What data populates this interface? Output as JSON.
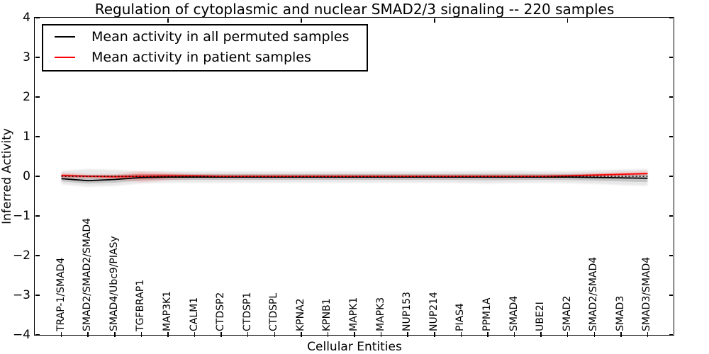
{
  "figure": {
    "background_color": "#ffffff",
    "frame_color": "#000000"
  },
  "chart_data": {
    "type": "line",
    "title": "Regulation of cytoplasmic and nuclear SMAD2/3 signaling -- 220 samples",
    "xlabel": "Cellular Entities",
    "ylabel": "Inferred Activity",
    "ylim": [
      -4,
      4
    ],
    "xlim_categories": [
      0,
      24
    ],
    "grid": false,
    "yticks": [
      -4,
      -3,
      -2,
      -1,
      0,
      1,
      2,
      3,
      4
    ],
    "ytick_labels": [
      "−4",
      "−3",
      "−2",
      "−1",
      "0",
      "1",
      "2",
      "3",
      "4"
    ],
    "top_axis_ticks": [
      5,
      10,
      15,
      20
    ],
    "categories": [
      "TRAP-1/SMAD4",
      "SMAD2/SMAD2/SMAD4",
      "SMAD4/Ubc9/PIASy",
      "TGFBRAP1",
      "MAP3K1",
      "CALM1",
      "CTDSP2",
      "CTDSP1",
      "CTDSPL",
      "KPNA2",
      "KPNB1",
      "MAPK1",
      "MAPK3",
      "NUP153",
      "NUP214",
      "PIAS4",
      "PPM1A",
      "SMAD4",
      "UBE2I",
      "SMAD2",
      "SMAD2/SMAD4",
      "SMAD3",
      "SMAD3/SMAD4"
    ],
    "series": [
      {
        "name": "Mean activity in all permuted samples",
        "color": "#000000",
        "line_style": "solid",
        "values": [
          -0.06,
          -0.11,
          -0.08,
          -0.03,
          -0.02,
          -0.02,
          -0.02,
          -0.02,
          -0.02,
          -0.02,
          -0.02,
          -0.02,
          -0.02,
          -0.02,
          -0.02,
          -0.02,
          -0.02,
          -0.02,
          -0.02,
          -0.02,
          -0.03,
          -0.04,
          -0.05
        ]
      },
      {
        "name": "Mean activity in patient samples",
        "color": "#ff0000",
        "line_style": "solid",
        "values": [
          0.02,
          0.0,
          -0.01,
          0.0,
          0.01,
          0.01,
          0.0,
          0.0,
          0.0,
          0.0,
          0.0,
          0.0,
          0.0,
          0.0,
          0.0,
          0.0,
          0.0,
          0.0,
          0.0,
          0.01,
          0.03,
          0.05,
          0.07
        ]
      }
    ],
    "bands": [
      {
        "name": "permuted-samples-spread-band",
        "color": "#000000",
        "opacity": 0.09,
        "series_index": 0,
        "upper": [
          0.14,
          0.18,
          0.16,
          0.13,
          0.13,
          0.13,
          0.13,
          0.13,
          0.13,
          0.13,
          0.13,
          0.13,
          0.13,
          0.13,
          0.13,
          0.13,
          0.14,
          0.14,
          0.13,
          0.13,
          0.15,
          0.17,
          0.18
        ],
        "lower": [
          -0.2,
          -0.26,
          -0.24,
          -0.18,
          -0.16,
          -0.16,
          -0.16,
          -0.16,
          -0.16,
          -0.16,
          -0.16,
          -0.16,
          -0.16,
          -0.16,
          -0.16,
          -0.17,
          -0.18,
          -0.17,
          -0.16,
          -0.17,
          -0.19,
          -0.22,
          -0.24
        ]
      },
      {
        "name": "patient-samples-spread-band",
        "color": "#ff0000",
        "opacity": 0.16,
        "series_index": 1,
        "upper": [
          0.09,
          0.05,
          0.05,
          0.12,
          0.09,
          0.06,
          0.05,
          0.05,
          0.05,
          0.05,
          0.05,
          0.05,
          0.05,
          0.05,
          0.05,
          0.05,
          0.05,
          0.05,
          0.05,
          0.06,
          0.08,
          0.1,
          0.12
        ],
        "lower": [
          -0.06,
          -0.05,
          -0.07,
          -0.14,
          -0.09,
          -0.05,
          -0.05,
          -0.05,
          -0.05,
          -0.05,
          -0.05,
          -0.05,
          -0.05,
          -0.05,
          -0.05,
          -0.05,
          -0.05,
          -0.05,
          -0.05,
          -0.04,
          -0.02,
          0.0,
          0.02
        ]
      }
    ],
    "reference_line": {
      "y": 0,
      "color": "#000000",
      "style": "dashed"
    },
    "legend_position": "upper left"
  }
}
